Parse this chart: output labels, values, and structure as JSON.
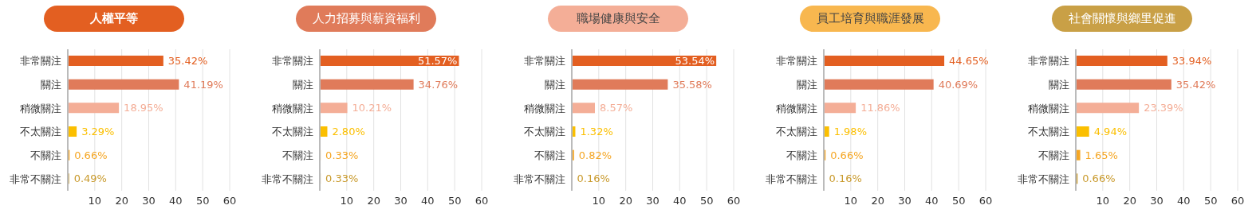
{
  "chart_data": [
    {
      "type": "bar",
      "orientation": "horizontal",
      "title": "人權平等",
      "categories": [
        "非常關注",
        "關注",
        "稍微關注",
        "不太關注",
        "不關注",
        "非常不關注"
      ],
      "values": [
        35.42,
        41.19,
        18.95,
        3.29,
        0.66,
        0.49
      ],
      "value_labels": [
        "35.42%",
        "41.19%",
        "18.95%",
        "3.29%",
        "0.66%",
        "0.49%"
      ],
      "colors": [
        "#e35f21",
        "#e07b5a",
        "#f4ae97",
        "#fbbf00",
        "#f5a623",
        "#c99a2c"
      ],
      "xlim": [
        0,
        60
      ],
      "xticks": [
        10,
        20,
        30,
        40,
        50,
        60
      ],
      "grid": "x"
    },
    {
      "type": "bar",
      "orientation": "horizontal",
      "title": "人力招募與薪資福利",
      "categories": [
        "非常關注",
        "關注",
        "稍微關注",
        "不太關注",
        "不關注",
        "非常不關注"
      ],
      "values": [
        51.57,
        34.76,
        10.21,
        2.8,
        0.33,
        0.33
      ],
      "value_labels": [
        "51.57%",
        "34.76%",
        "10.21%",
        "2.80%",
        "0.33%",
        "0.33%"
      ],
      "colors": [
        "#e35f21",
        "#e07b5a",
        "#f4ae97",
        "#fbbf00",
        "#f5a623",
        "#c99a2c"
      ],
      "xlim": [
        0,
        60
      ],
      "xticks": [
        10,
        20,
        30,
        40,
        50,
        60
      ],
      "grid": "x"
    },
    {
      "type": "bar",
      "orientation": "horizontal",
      "title": "職場健康與安全",
      "categories": [
        "非常關注",
        "關注",
        "稍微關注",
        "不太關注",
        "不關注",
        "非常不關注"
      ],
      "values": [
        53.54,
        35.58,
        8.57,
        1.32,
        0.82,
        0.16
      ],
      "value_labels": [
        "53.54%",
        "35.58%",
        "8.57%",
        "1.32%",
        "0.82%",
        "0.16%"
      ],
      "colors": [
        "#e35f21",
        "#e07b5a",
        "#f4ae97",
        "#fbbf00",
        "#f5a623",
        "#c99a2c"
      ],
      "xlim": [
        0,
        60
      ],
      "xticks": [
        10,
        20,
        30,
        40,
        50,
        60
      ],
      "grid": "x"
    },
    {
      "type": "bar",
      "orientation": "horizontal",
      "title": "員工培育與職涯發展",
      "categories": [
        "非常關注",
        "關注",
        "稍微關注",
        "不太關注",
        "不關注",
        "非常不關注"
      ],
      "values": [
        44.65,
        40.69,
        11.86,
        1.98,
        0.66,
        0.16
      ],
      "value_labels": [
        "44.65%",
        "40.69%",
        "11.86%",
        "1.98%",
        "0.66%",
        "0.16%"
      ],
      "colors": [
        "#e35f21",
        "#e07b5a",
        "#f4ae97",
        "#fbbf00",
        "#f5a623",
        "#c99a2c"
      ],
      "xlim": [
        0,
        60
      ],
      "xticks": [
        10,
        20,
        30,
        40,
        50,
        60
      ],
      "grid": "x"
    },
    {
      "type": "bar",
      "orientation": "horizontal",
      "title": "社會關懷與鄉里促進",
      "categories": [
        "非常關注",
        "關注",
        "稍微關注",
        "不太關注",
        "不關注",
        "非常不關注"
      ],
      "values": [
        33.94,
        35.42,
        23.39,
        4.94,
        1.65,
        0.66
      ],
      "value_labels": [
        "33.94%",
        "35.42%",
        "23.39%",
        "4.94%",
        "1.65%",
        "0.66%"
      ],
      "colors": [
        "#e35f21",
        "#e07b5a",
        "#f4ae97",
        "#fbbf00",
        "#f5a623",
        "#c99a2c"
      ],
      "xlim": [
        0,
        60
      ],
      "xticks": [
        10,
        20,
        30,
        40,
        50,
        60
      ],
      "grid": "x"
    }
  ]
}
